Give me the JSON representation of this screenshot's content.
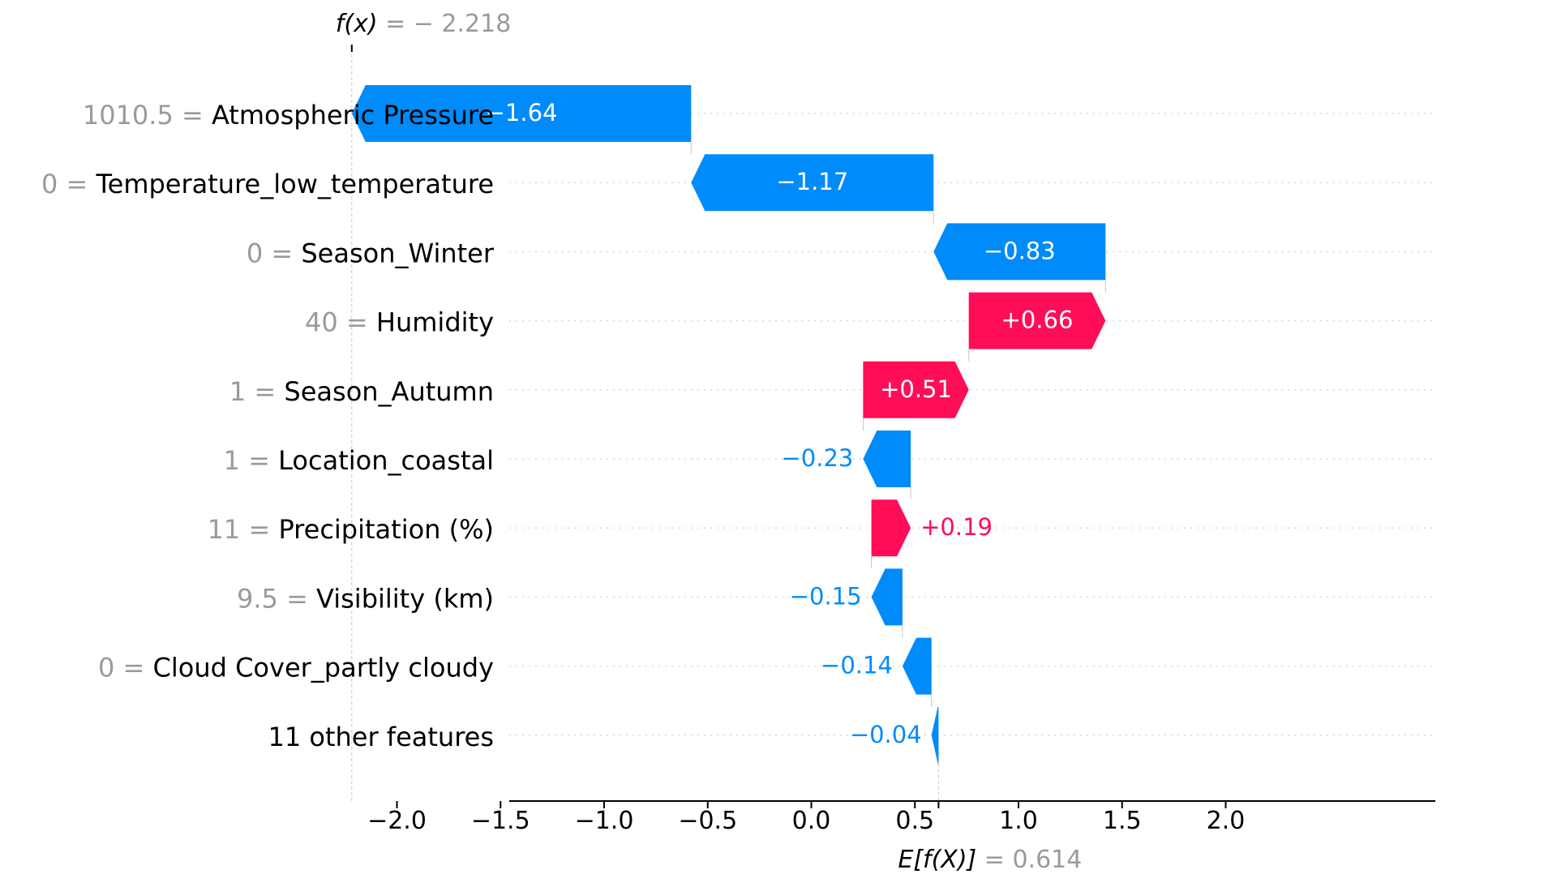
{
  "chart_data": {
    "type": "waterfall",
    "fx_label": "f(x)",
    "fx_eq": "= − 2.218",
    "fx_value": -2.218,
    "efx_label": "E[f(X)]",
    "efx_eq": "= 0.614",
    "base_value": 0.614,
    "xlim": [
      -2.4,
      2.0
    ],
    "xticks": [
      -2.0,
      -1.5,
      -1.0,
      -0.5,
      0.0,
      0.5,
      1.0,
      1.5,
      2.0
    ],
    "xtick_labels": [
      "−2.0",
      "−1.5",
      "−1.0",
      "−0.5",
      "0.0",
      "0.5",
      "1.0",
      "1.5",
      "2.0"
    ],
    "rows": [
      {
        "value": "1010.5 =",
        "feature": "Atmospheric Pressure",
        "start": -0.58,
        "end": -2.218,
        "contribution": -1.64,
        "label": "−1.64",
        "label_inside": true
      },
      {
        "value": "0 =",
        "feature": "Temperature_low_temperature",
        "start": 0.59,
        "end": -0.58,
        "contribution": -1.17,
        "label": "−1.17",
        "label_inside": true
      },
      {
        "value": "0 =",
        "feature": "Season_Winter",
        "start": 1.42,
        "end": 0.59,
        "contribution": -0.83,
        "label": "−0.83",
        "label_inside": true
      },
      {
        "value": "40 =",
        "feature": "Humidity",
        "start": 0.76,
        "end": 1.42,
        "contribution": 0.66,
        "label": "+0.66",
        "label_inside": true
      },
      {
        "value": "1 =",
        "feature": "Season_Autumn",
        "start": 0.25,
        "end": 0.76,
        "contribution": 0.51,
        "label": "+0.51",
        "label_inside": true
      },
      {
        "value": "1 =",
        "feature": "Location_coastal",
        "start": 0.48,
        "end": 0.25,
        "contribution": -0.23,
        "label": "−0.23",
        "label_inside": false
      },
      {
        "value": "11 =",
        "feature": "Precipitation (%)",
        "start": 0.29,
        "end": 0.48,
        "contribution": 0.19,
        "label": "+0.19",
        "label_inside": false
      },
      {
        "value": "9.5 =",
        "feature": "Visibility (km)",
        "start": 0.44,
        "end": 0.29,
        "contribution": -0.15,
        "label": "−0.15",
        "label_inside": false
      },
      {
        "value": "0 =",
        "feature": "Cloud Cover_partly cloudy",
        "start": 0.58,
        "end": 0.44,
        "contribution": -0.14,
        "label": "−0.14",
        "label_inside": false
      },
      {
        "value": "",
        "feature": "11 other features",
        "start": 0.614,
        "end": 0.58,
        "contribution": -0.04,
        "label": "−0.04",
        "label_inside": false
      }
    ],
    "colors": {
      "positive": "#ff0d57",
      "negative": "#008bfb",
      "grid": "#d8d8d8",
      "muted": "#9a9a9a"
    }
  }
}
